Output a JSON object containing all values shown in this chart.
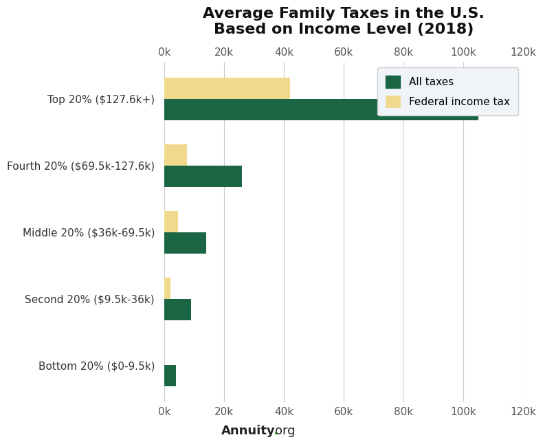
{
  "title": "Average Family Taxes in the U.S.\nBased on Income Level (2018)",
  "categories": [
    "Top 20% ($127.6k+)",
    "Fourth 20% ($69.5k-127.6k)",
    "Middle 20% ($36k-69.5k)",
    "Second 20% ($9.5k-36k)",
    "Bottom 20% ($0-9.5k)"
  ],
  "all_taxes": [
    105000,
    26000,
    14000,
    9000,
    4000
  ],
  "federal_income_tax": [
    42000,
    7500,
    4500,
    2000,
    0
  ],
  "all_taxes_color": "#1a6644",
  "federal_tax_color": "#f0d98c",
  "xlim": [
    0,
    120000
  ],
  "xticks": [
    0,
    20000,
    40000,
    60000,
    80000,
    100000,
    120000
  ],
  "xticklabels": [
    "0k",
    "20k",
    "40k",
    "60k",
    "80k",
    "100k",
    "120k"
  ],
  "background_color": "#ffffff",
  "title_fontsize": 16,
  "legend_labels": [
    "All taxes",
    "Federal income tax"
  ],
  "footer_annuity": "Annuity",
  "footer_dot": ".",
  "footer_org": "org",
  "footer_dot_color": "#4caf50",
  "footer_text_color": "#222222",
  "tick_color": "#555555",
  "grid_color": "#cccccc",
  "legend_bg": "#f0f4f8",
  "legend_edge": "#cccccc"
}
